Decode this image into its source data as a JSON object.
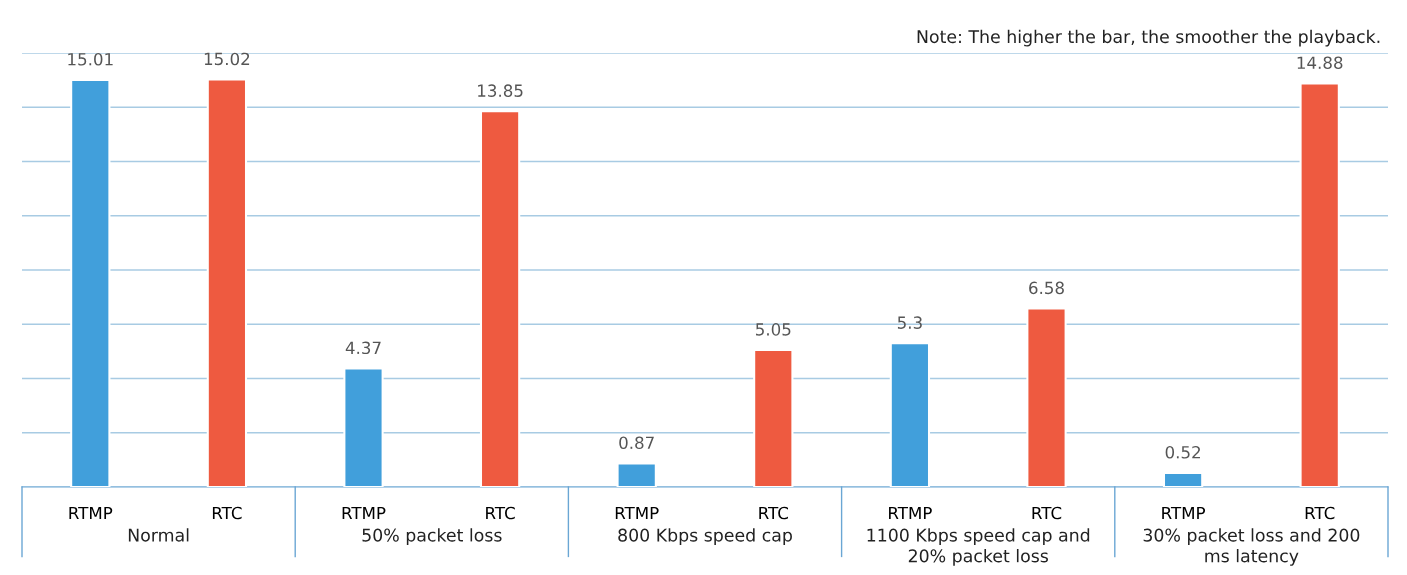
{
  "chart_data": {
    "type": "bar",
    "categories": [
      "Normal",
      "50% packet loss",
      "800 Kbps speed cap",
      "1100 Kbps speed cap and 20% packet loss",
      "30% packet loss and 200 ms latency"
    ],
    "series": [
      {
        "name": "RTMP",
        "color": "#419fdb",
        "values": [
          15.01,
          4.37,
          0.87,
          5.3,
          0.52
        ]
      },
      {
        "name": "RTC",
        "color": "#ee5a40",
        "values": [
          15.02,
          13.85,
          5.05,
          6.58,
          14.88
        ]
      }
    ],
    "data_labels": true,
    "ylim": [
      0,
      16
    ],
    "yticks": [
      {
        "value": 0,
        "label": null
      },
      {
        "value": 2,
        "label": null
      },
      {
        "value": 4,
        "label": null
      },
      {
        "value": 6,
        "label": null
      },
      {
        "value": 8,
        "label": null
      },
      {
        "value": 10,
        "label": null
      },
      {
        "value": 12,
        "label": null
      },
      {
        "value": 14,
        "label": null
      },
      {
        "value": 16,
        "label": null
      }
    ],
    "grid": "y",
    "tick_labels": "x",
    "annotations": [
      "Note: The higher the bar, the smoother the playback."
    ]
  }
}
